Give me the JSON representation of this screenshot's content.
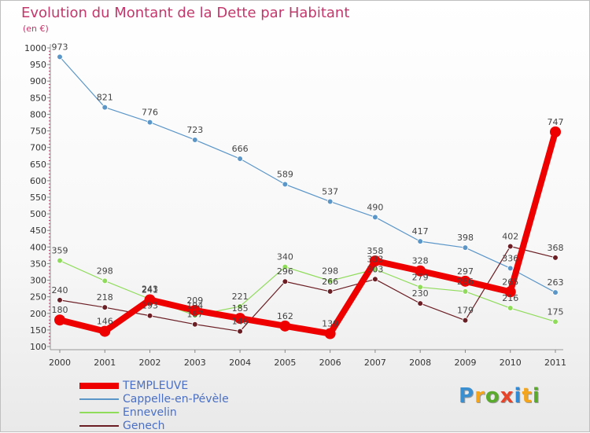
{
  "title": "Evolution du Montant de la Dette par Habitant",
  "subtitle": "(en €)",
  "logo": {
    "text": "Proxiti",
    "letter_colors": [
      "#3a8fd0",
      "#f4a51c",
      "#5aaa2e",
      "#e8442a",
      "#2f8ad8",
      "#f4a51c",
      "#5aaa2e"
    ]
  },
  "chart_data": {
    "type": "line",
    "title": "Evolution du Montant de la Dette par Habitant",
    "subtitle": "(en €)",
    "x": [
      "2000",
      "2001",
      "2002",
      "2003",
      "2004",
      "2005",
      "2006",
      "2007",
      "2008",
      "2009",
      "2010",
      "2011"
    ],
    "ylim": [
      100,
      1000
    ],
    "yticks": [
      100,
      150,
      200,
      250,
      300,
      350,
      400,
      450,
      500,
      550,
      600,
      650,
      700,
      750,
      800,
      850,
      900,
      950,
      1000
    ],
    "grid": false,
    "legend_position": "bottom-left",
    "series": [
      {
        "name": "TEMPLEUVE",
        "color": "#ee0000",
        "values": [
          180,
          146,
          241,
          209,
          185,
          162,
          139,
          358,
          328,
          297,
          265,
          747
        ]
      },
      {
        "name": "Cappelle-en-Pévèle",
        "color": "#5b96c8",
        "values": [
          973,
          821,
          776,
          723,
          666,
          589,
          537,
          490,
          417,
          398,
          336,
          263
        ]
      },
      {
        "name": "Ennevelin",
        "color": "#8fdc5a",
        "values": [
          359,
          298,
          243,
          194,
          221,
          340,
          298,
          333,
          279,
          266,
          216,
          175
        ]
      },
      {
        "name": "Genech",
        "color": "#6b1e24",
        "values": [
          240,
          218,
          193,
          167,
          146,
          296,
          266,
          303,
          230,
          179,
          402,
          368
        ]
      }
    ]
  }
}
